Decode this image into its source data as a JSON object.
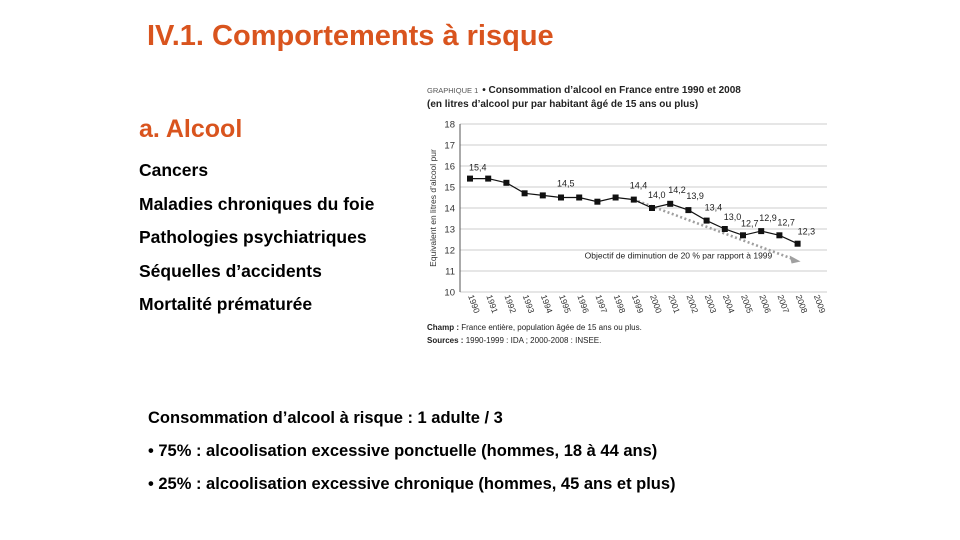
{
  "slide": {
    "title": "IV.1. Comportements à risque",
    "subtitle": "a. Alcool",
    "risks": [
      "Cancers",
      "Maladies chroniques du foie",
      "Pathologies psychiatriques",
      "Séquelles d’accidents",
      "Mortalité prématurée"
    ],
    "stats": {
      "heading": "Consommation d’alcool à risque : 1 adulte / 3",
      "bullets": [
        "75% : alcoolisation excessive ponctuelle (hommes, 18 à 44 ans)",
        "25% : alcoolisation excessive chronique (hommes, 45 ans et plus)"
      ]
    }
  },
  "chart_data": {
    "type": "line",
    "graph_label": "GRAPHIQUE 1",
    "title": "Consommation d’alcool en France entre 1990 et 2008",
    "subtitle": "(en litres d’alcool pur par habitant âgé de 15 ans ou plus)",
    "ylabel": "Equivalent en litres d’alcool pur",
    "xlabel": "",
    "ylim": [
      10,
      18
    ],
    "yticks": [
      10,
      11,
      12,
      13,
      14,
      15,
      16,
      17,
      18
    ],
    "grid": true,
    "x": [
      "1990",
      "1991",
      "1992",
      "1993",
      "1994",
      "1995",
      "1996",
      "1997",
      "1998",
      "1999",
      "2000",
      "2001",
      "2002",
      "2003",
      "2004",
      "2005",
      "2006",
      "2007",
      "2008",
      "2009"
    ],
    "series": [
      {
        "name": "",
        "color": "#111111",
        "values": [
          15.4,
          15.4,
          15.2,
          14.7,
          14.6,
          14.5,
          14.5,
          14.3,
          14.5,
          14.4,
          14.0,
          14.2,
          13.9,
          13.4,
          13.0,
          12.7,
          12.9,
          12.7,
          12.3,
          null
        ],
        "labels": [
          "15,4",
          "",
          "",
          "",
          "",
          "14,5",
          "",
          "",
          "",
          "14,4",
          "14,0",
          "14,2",
          "13,9",
          "13,4",
          "13,0",
          "12,7",
          "12,9",
          "12,7",
          "12,3",
          ""
        ]
      }
    ],
    "objective": {
      "label": "Objectif de diminution de 20 % par rapport à 1999",
      "from": {
        "x": "1999",
        "y": 14.4
      },
      "to": {
        "x": "2008",
        "y": 11.5
      },
      "color": "#a0a0a0"
    },
    "footnotes": {
      "champ_label": "Champ :",
      "champ": "France entière, population âgée de 15 ans ou plus.",
      "sources_label": "Sources :",
      "sources": "1990-1999 : IDA ; 2000-2008 : INSEE."
    }
  }
}
